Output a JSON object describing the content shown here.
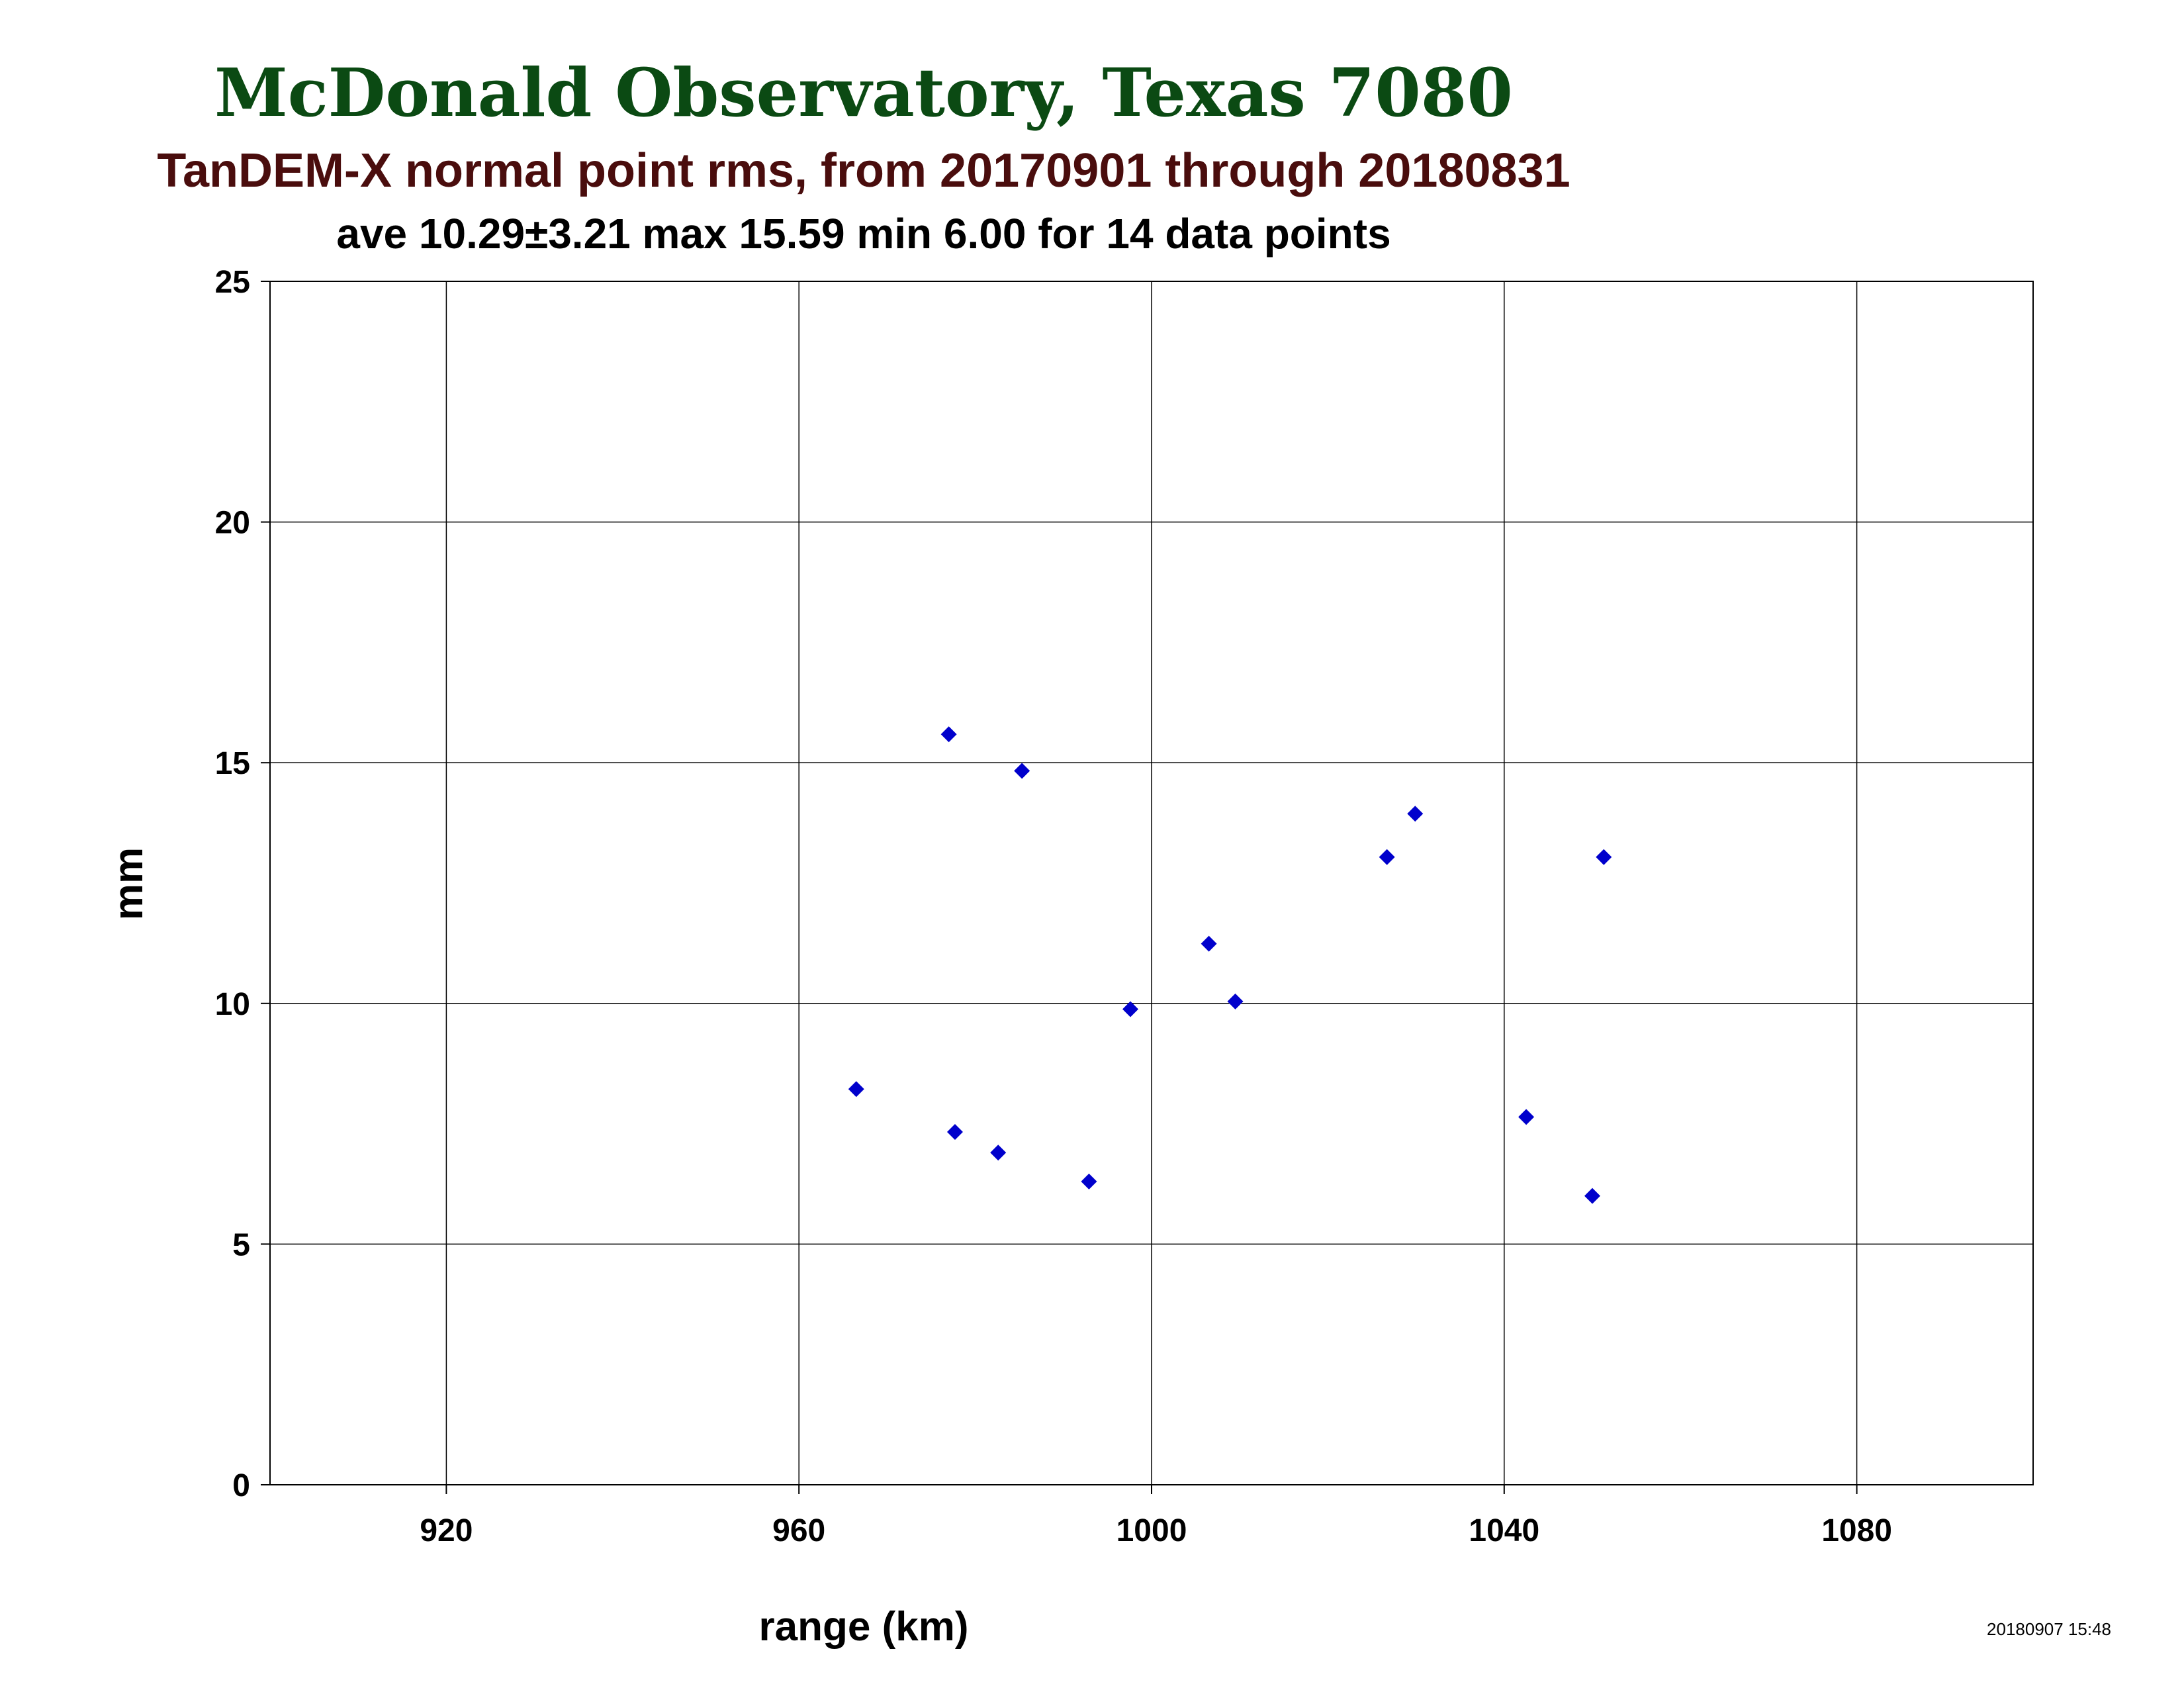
{
  "colors": {
    "title": "#0b4a13",
    "subtitle": "#4a0d0d",
    "stats": "#000000",
    "marker": "#0000cc",
    "grid": "#000000"
  },
  "chart_data": {
    "type": "scatter",
    "title": "McDonald Observatory, Texas 7080",
    "subtitle": "TanDEM-X normal point rms, from 20170901 through 20180831",
    "stats_line": "ave 10.29±3.21 max 15.59 min 6.00 for 14 data points",
    "xlabel": "range (km)",
    "ylabel": "mm",
    "xlim": [
      900,
      1100
    ],
    "ylim": [
      0,
      25
    ],
    "xticks": [
      920,
      960,
      1000,
      1040,
      1080
    ],
    "yticks": [
      0,
      5,
      10,
      15,
      20,
      25
    ],
    "grid": true,
    "marker": "diamond",
    "timestamp": "20180907 15:48",
    "series": [
      {
        "points": [
          {
            "x": 966.5,
            "y": 8.22
          },
          {
            "x": 977.0,
            "y": 15.59
          },
          {
            "x": 977.7,
            "y": 7.33
          },
          {
            "x": 982.6,
            "y": 6.9
          },
          {
            "x": 985.3,
            "y": 14.83
          },
          {
            "x": 992.9,
            "y": 6.3
          },
          {
            "x": 997.6,
            "y": 9.88
          },
          {
            "x": 1006.5,
            "y": 11.24
          },
          {
            "x": 1009.5,
            "y": 10.04
          },
          {
            "x": 1026.7,
            "y": 13.04
          },
          {
            "x": 1029.9,
            "y": 13.94
          },
          {
            "x": 1042.5,
            "y": 7.64
          },
          {
            "x": 1050.0,
            "y": 6.0
          },
          {
            "x": 1051.3,
            "y": 13.04
          }
        ]
      }
    ]
  }
}
